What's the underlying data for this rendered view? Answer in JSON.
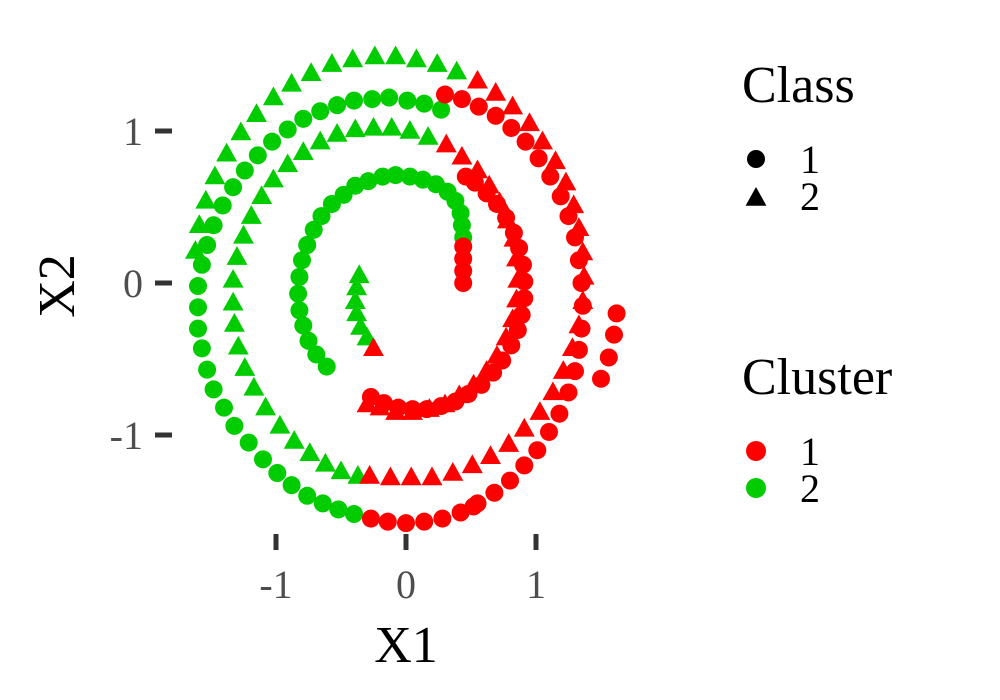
{
  "chart_data": {
    "type": "scatter",
    "title": "",
    "xlabel": "X1",
    "ylabel": "X2",
    "xlim": [
      -1.8,
      1.85
    ],
    "ylim": [
      -1.63,
      1.53
    ],
    "x_ticks": [
      -1,
      0,
      1
    ],
    "y_ticks": [
      -1,
      0,
      1
    ],
    "x_tick_labels": [
      "-1",
      "0",
      "1"
    ],
    "y_tick_labels": [
      "-1",
      "0",
      "1"
    ],
    "grid": false,
    "legend_placement": "right",
    "colors": {
      "cluster_1": "#ff0000",
      "cluster_2": "#00cc00"
    },
    "legends": [
      {
        "title": "Class",
        "entries": [
          {
            "label": "1",
            "shape": "circle"
          },
          {
            "label": "2",
            "shape": "triangle"
          }
        ]
      },
      {
        "title": "Cluster",
        "entries": [
          {
            "label": "1",
            "color": "#ff0000"
          },
          {
            "label": "2",
            "color": "#00cc00"
          }
        ]
      }
    ],
    "series": [
      {
        "class": "1",
        "shape": "circle",
        "segments": [
          {
            "cluster": "2",
            "points": [
              [
                -1.32,
                -0.94
              ],
              [
                -1.21,
                -1.05
              ],
              [
                -1.1,
                -1.16
              ],
              [
                -0.99,
                -1.25
              ],
              [
                -0.88,
                -1.33
              ],
              [
                -0.76,
                -1.4
              ],
              [
                -0.64,
                -1.45
              ],
              [
                -0.52,
                -1.49
              ],
              [
                -0.4,
                -1.52
              ],
              [
                -1.4,
                -0.82
              ],
              [
                -1.48,
                -0.7
              ],
              [
                -1.53,
                -0.57
              ],
              [
                -1.57,
                -0.43
              ],
              [
                -1.6,
                -0.3
              ],
              [
                -1.6,
                -0.16
              ],
              [
                -1.6,
                -0.02
              ],
              [
                -1.57,
                0.12
              ],
              [
                -1.53,
                0.25
              ],
              [
                -1.48,
                0.38
              ],
              [
                -1.41,
                0.51
              ],
              [
                -1.33,
                0.63
              ],
              [
                -1.24,
                0.74
              ],
              [
                -1.14,
                0.84
              ],
              [
                -1.03,
                0.93
              ],
              [
                -0.91,
                1.01
              ],
              [
                -0.79,
                1.08
              ],
              [
                -0.66,
                1.13
              ],
              [
                -0.53,
                1.17
              ],
              [
                -0.4,
                1.2
              ],
              [
                -0.26,
                1.21
              ],
              [
                -0.13,
                1.22
              ],
              [
                0.01,
                1.2
              ],
              [
                0.14,
                1.18
              ],
              [
                0.27,
                1.14
              ],
              [
                -0.61,
                -0.55
              ],
              [
                -0.69,
                -0.47
              ],
              [
                -0.75,
                -0.38
              ],
              [
                -0.79,
                -0.28
              ],
              [
                -0.82,
                -0.18
              ],
              [
                -0.83,
                -0.07
              ],
              [
                -0.82,
                0.04
              ],
              [
                -0.8,
                0.15
              ],
              [
                -0.76,
                0.25
              ],
              [
                -0.71,
                0.35
              ],
              [
                -0.65,
                0.44
              ],
              [
                -0.57,
                0.52
              ],
              [
                -0.48,
                0.58
              ],
              [
                -0.39,
                0.64
              ],
              [
                -0.29,
                0.67
              ],
              [
                -0.18,
                0.7
              ],
              [
                -0.08,
                0.71
              ],
              [
                0.03,
                0.7
              ],
              [
                0.13,
                0.68
              ],
              [
                0.23,
                0.65
              ],
              [
                0.32,
                0.6
              ],
              [
                0.38,
                0.54
              ],
              [
                0.42,
                0.46
              ],
              [
                0.43,
                0.38
              ],
              [
                0.44,
                0.3
              ]
            ]
          },
          {
            "cluster": "1",
            "points": [
              [
                -0.27,
                -1.55
              ],
              [
                -0.14,
                -1.57
              ],
              [
                0,
                -1.58
              ],
              [
                0.14,
                -1.57
              ],
              [
                0.28,
                -1.55
              ],
              [
                0.42,
                -1.51
              ],
              [
                0.55,
                -1.45
              ],
              [
                0.68,
                -1.38
              ],
              [
                0.8,
                -1.3
              ],
              [
                0.91,
                -1.2
              ],
              [
                1.01,
                -1.1
              ],
              [
                1.1,
                -0.98
              ],
              [
                1.18,
                -0.86
              ],
              [
                1.25,
                -0.72
              ],
              [
                1.3,
                -0.58
              ],
              [
                1.33,
                -0.44
              ],
              [
                1.35,
                -0.3
              ],
              [
                1.36,
                -0.15
              ],
              [
                1.35,
                0
              ],
              [
                1.33,
                0.15
              ],
              [
                1.3,
                0.3
              ],
              [
                1.25,
                0.44
              ],
              [
                1.19,
                0.57
              ],
              [
                1.11,
                0.7
              ],
              [
                1.02,
                0.82
              ],
              [
                0.92,
                0.93
              ],
              [
                0.81,
                1.02
              ],
              [
                0.69,
                1.1
              ],
              [
                0.56,
                1.16
              ],
              [
                0.43,
                1.21
              ],
              [
                0.3,
                1.24
              ],
              [
                -0.27,
                -0.75
              ],
              [
                -0.17,
                -0.79
              ],
              [
                -0.06,
                -0.82
              ],
              [
                0.05,
                -0.83
              ],
              [
                0.16,
                -0.83
              ],
              [
                0.27,
                -0.81
              ],
              [
                0.38,
                -0.78
              ],
              [
                0.48,
                -0.73
              ],
              [
                0.58,
                -0.67
              ],
              [
                0.67,
                -0.59
              ],
              [
                0.74,
                -0.51
              ],
              [
                0.81,
                -0.41
              ],
              [
                0.86,
                -0.31
              ],
              [
                0.89,
                -0.21
              ],
              [
                0.91,
                -0.1
              ],
              [
                0.91,
                0.01
              ],
              [
                0.9,
                0.12
              ],
              [
                0.87,
                0.23
              ],
              [
                0.83,
                0.33
              ],
              [
                0.77,
                0.43
              ],
              [
                0.7,
                0.52
              ],
              [
                0.62,
                0.59
              ],
              [
                0.53,
                0.66
              ],
              [
                0.46,
                0.7
              ],
              [
                0.44,
                0.24
              ],
              [
                0.44,
                0.16
              ],
              [
                0.44,
                0.08
              ],
              [
                0.44,
                0
              ],
              [
                0.52,
                -1.47
              ],
              [
                1.62,
                -0.2
              ],
              [
                1.6,
                -0.34
              ],
              [
                1.56,
                -0.49
              ],
              [
                1.5,
                -0.63
              ]
            ]
          }
        ]
      },
      {
        "class": "2",
        "shape": "triangle",
        "segments": [
          {
            "cluster": "2",
            "points": [
              [
                -1.62,
                0.21
              ],
              [
                -1.59,
                0.38
              ],
              [
                -1.54,
                0.54
              ],
              [
                -1.47,
                0.7
              ],
              [
                -1.38,
                0.85
              ],
              [
                -1.27,
                0.99
              ],
              [
                -1.15,
                1.11
              ],
              [
                -1.02,
                1.22
              ],
              [
                -0.88,
                1.31
              ],
              [
                -0.73,
                1.38
              ],
              [
                -0.57,
                1.44
              ],
              [
                -0.41,
                1.47
              ],
              [
                -0.24,
                1.49
              ],
              [
                -0.08,
                1.49
              ],
              [
                0.08,
                1.47
              ],
              [
                0.24,
                1.44
              ],
              [
                0.39,
                1.39
              ],
              [
                -0.97,
                -0.94
              ],
              [
                -1.08,
                -0.82
              ],
              [
                -1.17,
                -0.69
              ],
              [
                -1.24,
                -0.56
              ],
              [
                -1.29,
                -0.42
              ],
              [
                -1.32,
                -0.27
              ],
              [
                -1.33,
                -0.13
              ],
              [
                -1.33,
                0.02
              ],
              [
                -1.3,
                0.17
              ],
              [
                -1.25,
                0.31
              ],
              [
                -1.19,
                0.44
              ],
              [
                -1.11,
                0.57
              ],
              [
                -1.02,
                0.68
              ],
              [
                -0.91,
                0.78
              ],
              [
                -0.79,
                0.86
              ],
              [
                -0.66,
                0.93
              ],
              [
                -0.53,
                0.98
              ],
              [
                -0.39,
                1.01
              ],
              [
                -0.25,
                1.02
              ],
              [
                -0.11,
                1.02
              ],
              [
                0.03,
                1.0
              ],
              [
                0.17,
                0.96
              ],
              [
                -0.86,
                -1.04
              ],
              [
                -0.74,
                -1.12
              ],
              [
                -0.62,
                -1.19
              ],
              [
                -0.5,
                -1.24
              ],
              [
                -0.37,
                -1.27
              ],
              [
                -0.3,
                -0.36
              ],
              [
                -0.35,
                -0.29
              ],
              [
                -0.38,
                -0.2
              ],
              [
                -0.39,
                -0.12
              ],
              [
                -0.38,
                -0.03
              ],
              [
                -0.36,
                0.05
              ]
            ]
          },
          {
            "cluster": "1",
            "points": [
              [
                0.55,
                1.33
              ],
              [
                0.69,
                1.25
              ],
              [
                0.82,
                1.16
              ],
              [
                0.95,
                1.05
              ],
              [
                1.05,
                0.93
              ],
              [
                1.15,
                0.8
              ],
              [
                1.23,
                0.66
              ],
              [
                1.29,
                0.51
              ],
              [
                1.33,
                0.36
              ],
              [
                1.36,
                0.2
              ],
              [
                1.37,
                0.04
              ],
              [
                1.36,
                -0.12
              ],
              [
                1.33,
                -0.28
              ],
              [
                1.28,
                -0.43
              ],
              [
                1.21,
                -0.58
              ],
              [
                1.13,
                -0.72
              ],
              [
                1.03,
                -0.85
              ],
              [
                0.91,
                -0.96
              ],
              [
                0.79,
                -1.06
              ],
              [
                0.65,
                -1.14
              ],
              [
                0.51,
                -1.2
              ],
              [
                0.36,
                -1.25
              ],
              [
                0.2,
                -1.28
              ],
              [
                0.04,
                -1.28
              ],
              [
                -0.12,
                -1.28
              ],
              [
                -0.28,
                -1.27
              ],
              [
                0.31,
                0.91
              ],
              [
                0.43,
                0.83
              ],
              [
                0.55,
                0.74
              ],
              [
                0.64,
                0.64
              ],
              [
                0.72,
                0.53
              ],
              [
                0.78,
                0.41
              ],
              [
                0.83,
                0.29
              ],
              [
                0.85,
                0.16
              ],
              [
                0.86,
                0.02
              ],
              [
                0.85,
                -0.11
              ],
              [
                0.82,
                -0.24
              ],
              [
                0.77,
                -0.36
              ],
              [
                0.7,
                -0.48
              ],
              [
                0.62,
                -0.58
              ],
              [
                0.52,
                -0.67
              ],
              [
                0.41,
                -0.74
              ],
              [
                0.3,
                -0.8
              ],
              [
                0.18,
                -0.83
              ],
              [
                0.05,
                -0.85
              ],
              [
                -0.08,
                -0.85
              ],
              [
                -0.2,
                -0.82
              ],
              [
                -0.3,
                -0.8
              ],
              [
                -0.25,
                -0.43
              ]
            ]
          }
        ]
      }
    ]
  }
}
